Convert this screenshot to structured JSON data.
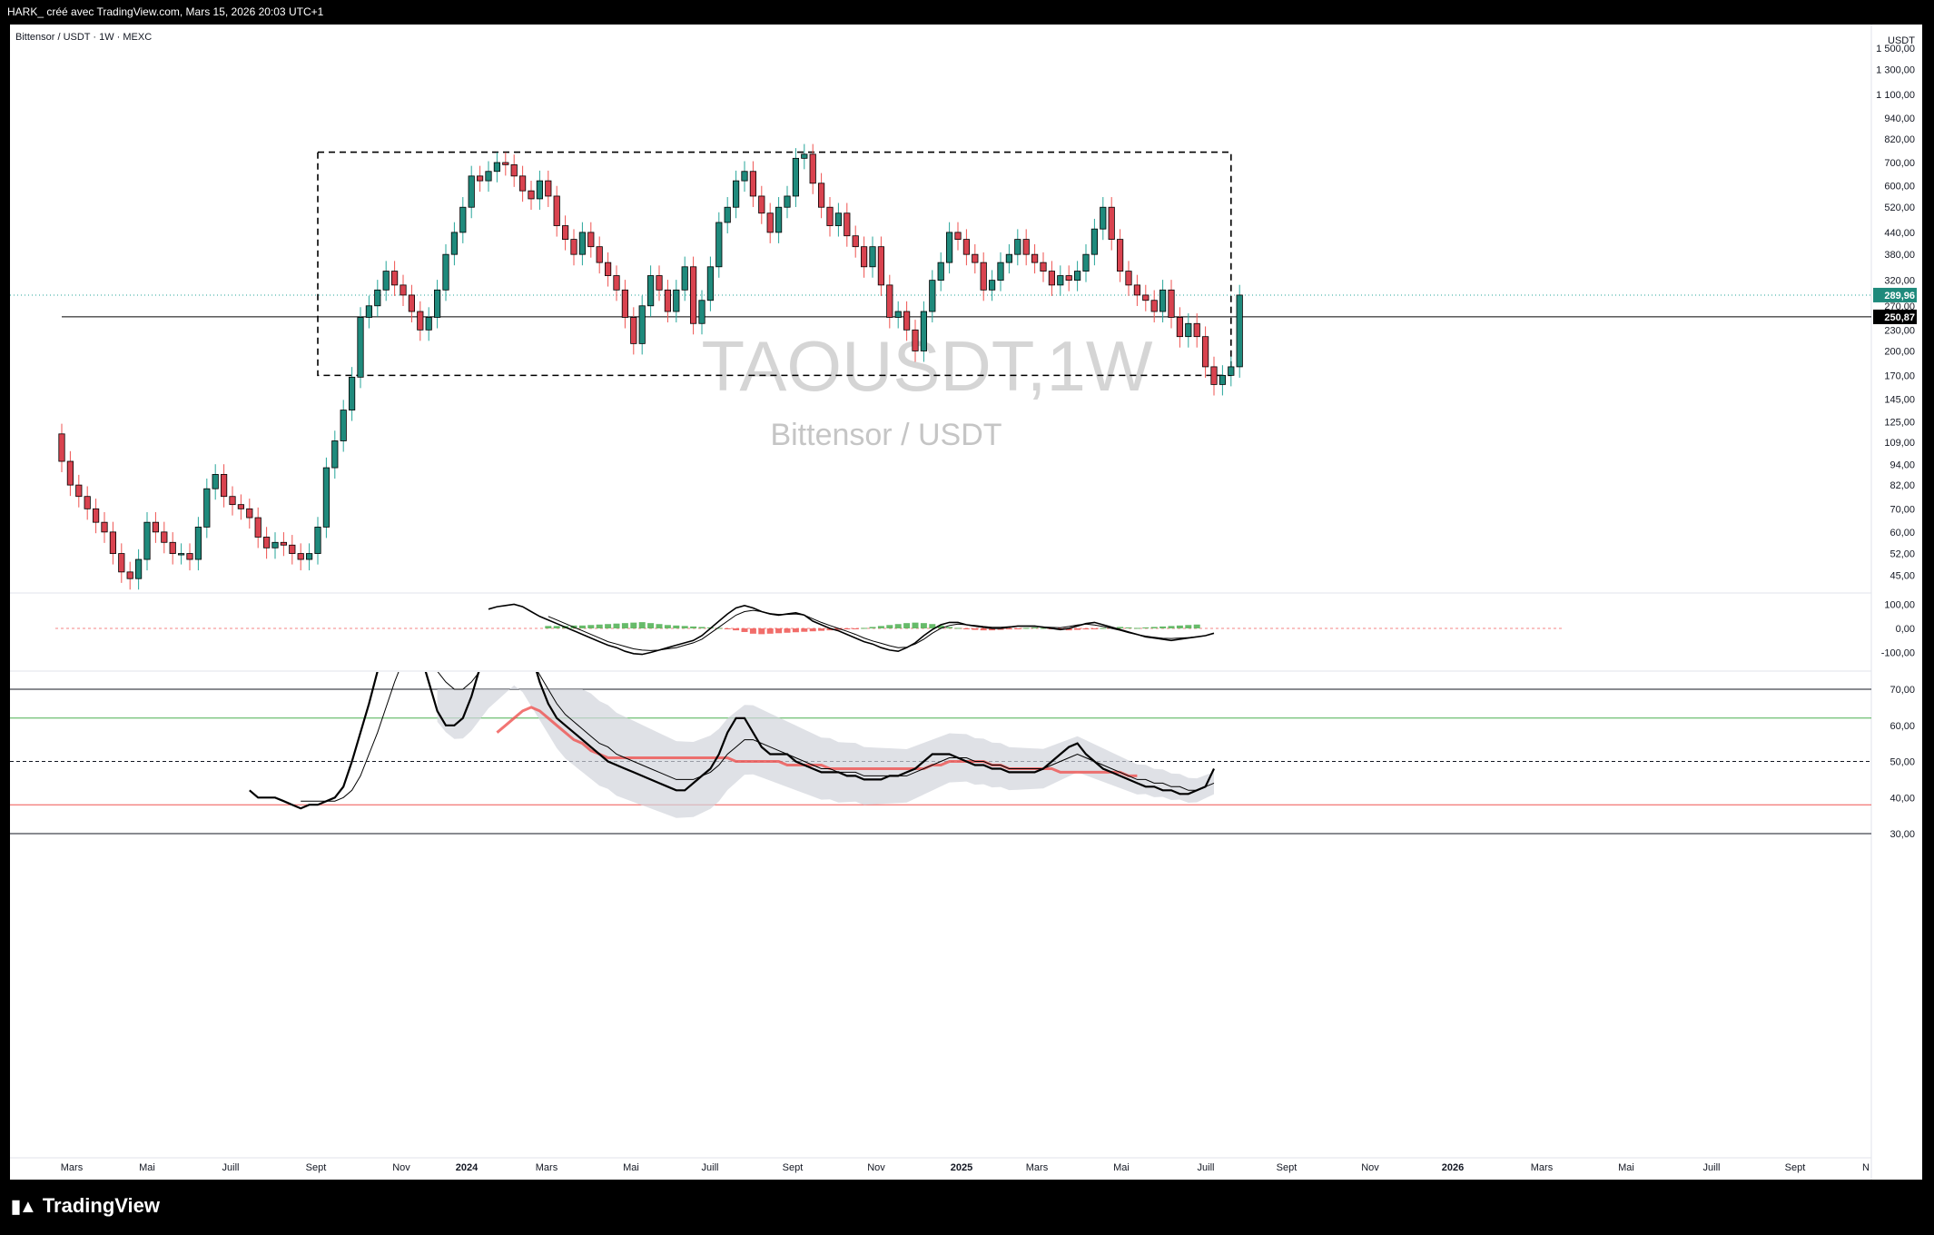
{
  "header": {
    "attribution": "HARK_ créé avec TradingView.com, Mars 15, 2026 20:03 UTC+1"
  },
  "footer": {
    "brand": "TradingView"
  },
  "chart_data": [
    {
      "type": "candlestick",
      "symbol_label": "Bittensor / USDT · 1W · MEXC",
      "watermark_symbol": "TAOUSDT,1W",
      "watermark_name": "Bittensor / USDT",
      "currency_label": "USDT",
      "y_scale": "log",
      "y_ticks": [
        45,
        52,
        60,
        70,
        82,
        94,
        109,
        125,
        145,
        170,
        200,
        230,
        270,
        320,
        380,
        440,
        520,
        600,
        700,
        820,
        940,
        1100,
        1300,
        1500
      ],
      "y_tick_labels": [
        "45,00",
        "52,00",
        "60,00",
        "70,00",
        "82,00",
        "94,00",
        "109,00",
        "125,00",
        "145,00",
        "170,00",
        "200,00",
        "230,00",
        "270,00",
        "320,00",
        "380,00",
        "440,00",
        "520,00",
        "600,00",
        "700,00",
        "820,00",
        "940,00",
        "1 100,00",
        "1 300,00",
        "1 500,00"
      ],
      "x_tick_labels": [
        "Mars",
        "Mai",
        "Juill",
        "Sept",
        "Nov",
        "2024",
        "Mars",
        "Mai",
        "Juill",
        "Sept",
        "Nov",
        "2025",
        "Mars",
        "Mai",
        "Juill",
        "Sept",
        "Nov",
        "2026",
        "Mars",
        "Mai",
        "Juill",
        "Sept",
        "N"
      ],
      "last_price": 289.96,
      "last_price_label": "289,96",
      "horizontal_line": 250.87,
      "horizontal_line_label": "250,87",
      "range_box": {
        "top": 750,
        "bottom": 170,
        "style": "dashed"
      },
      "colors": {
        "up": "#26a69a",
        "down": "#ef5350",
        "up_body": "#1f8a7c",
        "down_body": "#d9434f"
      },
      "closes": [
        96,
        82,
        76,
        70,
        64,
        60,
        52,
        46,
        44,
        50,
        64,
        60,
        56,
        52,
        52,
        50,
        62,
        80,
        88,
        76,
        72,
        70,
        66,
        58,
        54,
        56,
        55,
        52,
        50,
        52,
        62,
        92,
        110,
        135,
        168,
        250,
        270,
        300,
        340,
        310,
        290,
        260,
        230,
        250,
        300,
        380,
        440,
        520,
        640,
        620,
        660,
        700,
        690,
        640,
        580,
        550,
        620,
        560,
        460,
        420,
        380,
        440,
        400,
        360,
        330,
        300,
        250,
        210,
        270,
        330,
        300,
        260,
        300,
        350,
        240,
        280,
        350,
        470,
        520,
        620,
        660,
        560,
        500,
        440,
        520,
        560,
        720,
        740,
        610,
        520,
        460,
        500,
        430,
        400,
        350,
        400,
        310,
        250,
        260,
        230,
        200,
        260,
        320,
        360,
        440,
        420,
        380,
        360,
        300,
        320,
        360,
        380,
        420,
        380,
        360,
        340,
        310,
        330,
        320,
        340,
        380,
        450,
        520,
        420,
        340,
        310,
        290,
        280,
        260,
        300,
        250,
        220,
        240,
        220,
        180,
        160,
        170,
        180,
        290
      ],
      "series_names": []
    },
    {
      "type": "line",
      "indicator": "macd",
      "y_ticks": [
        -100,
        0,
        100
      ],
      "y_tick_labels": [
        "-100,00",
        "0,00",
        "100,00"
      ],
      "macd": [
        null,
        null,
        null,
        null,
        null,
        null,
        null,
        null,
        null,
        null,
        null,
        null,
        null,
        null,
        null,
        null,
        null,
        null,
        null,
        null,
        null,
        null,
        null,
        null,
        null,
        null,
        null,
        null,
        null,
        null,
        null,
        null,
        null,
        null,
        null,
        null,
        null,
        null,
        null,
        null,
        null,
        null,
        null,
        null,
        null,
        null,
        null,
        null,
        null,
        null,
        80,
        90,
        95,
        100,
        90,
        70,
        50,
        35,
        20,
        5,
        -10,
        -25,
        -40,
        -55,
        -70,
        -80,
        -95,
        -105,
        -108,
        -100,
        -90,
        -80,
        -70,
        -60,
        -50,
        -30,
        0,
        30,
        60,
        85,
        95,
        85,
        70,
        60,
        55,
        60,
        65,
        55,
        30,
        15,
        0,
        -10,
        -25,
        -40,
        -55,
        -65,
        -80,
        -90,
        -95,
        -80,
        -60,
        -30,
        -5,
        15,
        25,
        25,
        15,
        10,
        5,
        0,
        0,
        5,
        10,
        10,
        10,
        5,
        0,
        -5,
        0,
        10,
        20,
        25,
        15,
        5,
        -5,
        -15,
        -25,
        -35,
        -40,
        -45,
        -50,
        -45,
        -40,
        -35,
        -30,
        -20
      ],
      "signal": [
        null,
        null,
        null,
        null,
        null,
        null,
        null,
        null,
        null,
        null,
        null,
        null,
        null,
        null,
        null,
        null,
        null,
        null,
        null,
        null,
        null,
        null,
        null,
        null,
        null,
        null,
        null,
        null,
        null,
        null,
        null,
        null,
        null,
        null,
        null,
        null,
        null,
        null,
        null,
        null,
        null,
        null,
        null,
        null,
        null,
        null,
        null,
        null,
        null,
        null,
        null,
        null,
        null,
        null,
        null,
        null,
        null,
        50,
        35,
        20,
        5,
        -10,
        -25,
        -40,
        -55,
        -65,
        -75,
        -85,
        -90,
        -92,
        -90,
        -85,
        -80,
        -70,
        -60,
        -45,
        -20,
        5,
        30,
        55,
        70,
        75,
        70,
        62,
        58,
        58,
        60,
        55,
        40,
        25,
        12,
        0,
        -12,
        -25,
        -40,
        -52,
        -62,
        -72,
        -80,
        -78,
        -65,
        -45,
        -20,
        0,
        12,
        18,
        15,
        12,
        8,
        5,
        5,
        7,
        9,
        9,
        8,
        6,
        4,
        3,
        8,
        14,
        18,
        14,
        8,
        0,
        -8,
        -18,
        -26,
        -32,
        -37,
        -41,
        -42,
        -40,
        -38,
        -35,
        -30
      ],
      "histogram": [
        null,
        null,
        null,
        null,
        null,
        null,
        null,
        null,
        null,
        null,
        null,
        null,
        null,
        null,
        null,
        null,
        null,
        null,
        null,
        null,
        null,
        null,
        null,
        null,
        null,
        null,
        null,
        null,
        null,
        null,
        null,
        null,
        null,
        null,
        null,
        null,
        null,
        null,
        null,
        null,
        null,
        null,
        null,
        null,
        null,
        null,
        null,
        null,
        null,
        null,
        null,
        null,
        null,
        null,
        null,
        null,
        null,
        10,
        10,
        10,
        12,
        12,
        14,
        16,
        18,
        20,
        22,
        24,
        26,
        22,
        18,
        14,
        12,
        10,
        8,
        6,
        4,
        2,
        -2,
        -8,
        -15,
        -22,
        -24,
        -22,
        -20,
        -18,
        -16,
        -14,
        -12,
        -10,
        -8,
        -6,
        -4,
        -2,
        2,
        6,
        10,
        14,
        18,
        22,
        24,
        22,
        18,
        12,
        6,
        2,
        -2,
        -6,
        -8,
        -8,
        -6,
        -4,
        -2,
        2,
        4,
        2,
        -2,
        -6,
        -8,
        -6,
        -4,
        -2,
        2,
        4,
        6,
        4,
        2,
        4,
        6,
        8,
        10,
        12,
        14,
        16
      ],
      "legend_colors": {
        "hist_up": "#4caf50",
        "hist_down": "#ef5350"
      }
    },
    {
      "type": "line",
      "indicator": "oscillator",
      "y_ticks": [
        30,
        40,
        50,
        60,
        70
      ],
      "y_tick_labels": [
        "30,00",
        "40,00",
        "50,00",
        "60,00",
        "70,00"
      ],
      "levels": {
        "upper": 70,
        "green": 62,
        "middle": 50,
        "lower": 38,
        "bottom": 30
      },
      "main": [
        null,
        null,
        null,
        null,
        null,
        null,
        null,
        null,
        null,
        null,
        null,
        null,
        null,
        null,
        null,
        null,
        null,
        null,
        null,
        null,
        null,
        null,
        42,
        40,
        40,
        40,
        39,
        38,
        37,
        38,
        38,
        39,
        40,
        43,
        50,
        58,
        66,
        75,
        82,
        88,
        90,
        86,
        80,
        72,
        64,
        60,
        60,
        62,
        68,
        76,
        84,
        88,
        90,
        92,
        88,
        80,
        72,
        66,
        62,
        60,
        58,
        56,
        54,
        52,
        50,
        49,
        48,
        47,
        46,
        45,
        44,
        43,
        42,
        42,
        44,
        46,
        48,
        52,
        58,
        62,
        62,
        58,
        54,
        52,
        52,
        52,
        50,
        49,
        48,
        47,
        47,
        47,
        46,
        46,
        45,
        45,
        45,
        46,
        46,
        47,
        48,
        50,
        52,
        52,
        52,
        51,
        50,
        49,
        49,
        48,
        48,
        47,
        47,
        47,
        47,
        48,
        50,
        52,
        54,
        55,
        52,
        50,
        48,
        47,
        46,
        45,
        44,
        43,
        43,
        42,
        42,
        41,
        41,
        42,
        43,
        48
      ],
      "slow": [
        null,
        null,
        null,
        null,
        null,
        null,
        null,
        null,
        null,
        null,
        null,
        null,
        null,
        null,
        null,
        null,
        null,
        null,
        null,
        null,
        null,
        null,
        null,
        null,
        null,
        null,
        null,
        null,
        39,
        39,
        39,
        39,
        39,
        40,
        42,
        46,
        52,
        58,
        65,
        72,
        78,
        80,
        80,
        78,
        75,
        72,
        70,
        70,
        72,
        75,
        78,
        80,
        82,
        84,
        82,
        78,
        74,
        70,
        66,
        63,
        61,
        59,
        57,
        55,
        54,
        52,
        51,
        50,
        49,
        48,
        47,
        46,
        45,
        45,
        45,
        46,
        47,
        49,
        52,
        54,
        56,
        56,
        55,
        54,
        53,
        52,
        51,
        50,
        49,
        48,
        48,
        47,
        47,
        47,
        46,
        46,
        46,
        46,
        46,
        46,
        47,
        48,
        49,
        50,
        51,
        51,
        51,
        50,
        50,
        49,
        49,
        48,
        48,
        48,
        48,
        48,
        49,
        50,
        51,
        52,
        51,
        50,
        49,
        48,
        47,
        46,
        45,
        45,
        44,
        44,
        43,
        43,
        42,
        42,
        43,
        44
      ],
      "ma_line": [
        null,
        null,
        null,
        null,
        null,
        null,
        null,
        null,
        null,
        null,
        null,
        null,
        null,
        null,
        null,
        null,
        null,
        null,
        null,
        null,
        null,
        null,
        null,
        null,
        null,
        null,
        null,
        null,
        null,
        null,
        null,
        null,
        null,
        null,
        null,
        null,
        null,
        null,
        null,
        null,
        null,
        null,
        null,
        null,
        null,
        null,
        null,
        null,
        null,
        null,
        null,
        58,
        60,
        62,
        64,
        65,
        64,
        62,
        60,
        58,
        56,
        55,
        53,
        52,
        51,
        51,
        51,
        51,
        51,
        51,
        51,
        51,
        51,
        51,
        51,
        51,
        51,
        51,
        51,
        50,
        50,
        50,
        50,
        50,
        50,
        49,
        49,
        49,
        49,
        49,
        48,
        48,
        48,
        48,
        48,
        48,
        48,
        48,
        48,
        48,
        48,
        48,
        49,
        49,
        50,
        50,
        50,
        50,
        50,
        49,
        49,
        48,
        48,
        48,
        48,
        48,
        48,
        47,
        47,
        47,
        47,
        47,
        47,
        47,
        47,
        46,
        46
      ]
    }
  ]
}
